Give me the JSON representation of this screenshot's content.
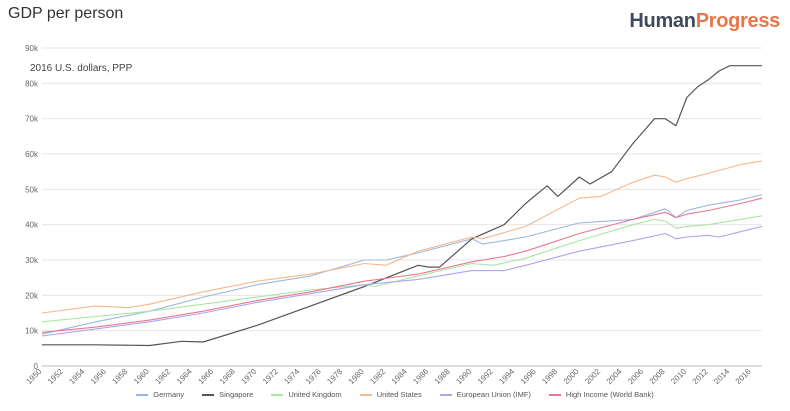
{
  "header": {
    "title": "GDP per person",
    "logo_part1": "Human",
    "logo_part2": "Progress"
  },
  "chart_data": {
    "type": "line",
    "title": "GDP per person",
    "ylabel": "2016 U.S. dollars, PPP",
    "xlabel": "",
    "xlim": [
      1950,
      2017
    ],
    "ylim": [
      0,
      90000
    ],
    "yticks": [
      0,
      10000,
      20000,
      30000,
      40000,
      50000,
      60000,
      70000,
      80000,
      90000
    ],
    "ytick_labels": [
      "0",
      "10k",
      "20k",
      "30k",
      "40k",
      "50k",
      "60k",
      "70k",
      "80k",
      "90k"
    ],
    "xticks": [
      1950,
      1952,
      1954,
      1956,
      1958,
      1960,
      1962,
      1964,
      1966,
      1968,
      1970,
      1972,
      1974,
      1976,
      1978,
      1980,
      1982,
      1984,
      1986,
      1988,
      1990,
      1992,
      1994,
      1996,
      1998,
      2000,
      2002,
      2004,
      2006,
      2008,
      2010,
      2012,
      2014,
      2016
    ],
    "grid": true,
    "legend_position": "bottom",
    "series": [
      {
        "name": "Germany",
        "color": "#9db8e0",
        "x": [
          1950,
          1955,
          1960,
          1965,
          1970,
          1975,
          1980,
          1982,
          1985,
          1990,
          1991,
          1993,
          1995,
          2000,
          2005,
          2008,
          2009,
          2010,
          2012,
          2015,
          2017
        ],
        "y": [
          9000,
          12500,
          15500,
          19500,
          23000,
          25500,
          30000,
          30000,
          32000,
          36000,
          34500,
          35500,
          36500,
          40500,
          41500,
          44500,
          42000,
          44000,
          45500,
          47000,
          48500
        ]
      },
      {
        "name": "Singapore",
        "color": "#555555",
        "x": [
          1950,
          1955,
          1960,
          1963,
          1965,
          1970,
          1975,
          1980,
          1985,
          1986,
          1987,
          1990,
          1993,
          1995,
          1997,
          1998,
          2000,
          2001,
          2003,
          2005,
          2007,
          2008,
          2009,
          2010,
          2011,
          2012,
          2013,
          2014,
          2015,
          2016,
          2017
        ],
        "y": [
          6000,
          6000,
          5800,
          7000,
          6800,
          11500,
          17000,
          22500,
          28500,
          28000,
          28000,
          36000,
          40000,
          46000,
          51000,
          48000,
          53500,
          51500,
          55000,
          63000,
          70000,
          70000,
          68000,
          76000,
          79000,
          81000,
          83500,
          85000,
          85000,
          85000,
          85000
        ]
      },
      {
        "name": "United Kingdom",
        "color": "#a9e6a0",
        "x": [
          1950,
          1955,
          1960,
          1965,
          1970,
          1975,
          1980,
          1981,
          1985,
          1990,
          1992,
          1995,
          2000,
          2005,
          2007,
          2008,
          2009,
          2010,
          2012,
          2015,
          2017
        ],
        "y": [
          12500,
          14000,
          15500,
          17500,
          19500,
          21500,
          23000,
          22500,
          25500,
          29000,
          28500,
          30500,
          35500,
          40000,
          41500,
          41000,
          39000,
          39500,
          40000,
          41500,
          42500
        ]
      },
      {
        "name": "United States",
        "color": "#f5b88c",
        "x": [
          1950,
          1955,
          1958,
          1960,
          1965,
          1970,
          1975,
          1980,
          1982,
          1985,
          1990,
          1991,
          1995,
          2000,
          2002,
          2005,
          2007,
          2008,
          2009,
          2010,
          2012,
          2015,
          2017
        ],
        "y": [
          15000,
          17000,
          16500,
          17500,
          21000,
          24000,
          26000,
          29000,
          28500,
          32500,
          36500,
          36000,
          39500,
          47500,
          48000,
          52000,
          54000,
          53500,
          52000,
          53000,
          54500,
          57000,
          58000
        ]
      },
      {
        "name": "European Union (IMF)",
        "color": "#a9a7ec",
        "x": [
          1950,
          1955,
          1960,
          1965,
          1970,
          1975,
          1980,
          1985,
          1990,
          1993,
          1995,
          2000,
          2005,
          2008,
          2009,
          2010,
          2012,
          2013,
          2015,
          2017
        ],
        "y": [
          8500,
          10500,
          12500,
          15000,
          18000,
          20500,
          23000,
          24500,
          27000,
          27000,
          28500,
          32500,
          35500,
          37500,
          36000,
          36500,
          37000,
          36500,
          38000,
          39500
        ]
      },
      {
        "name": "High Income (World Bank)",
        "color": "#e8788f",
        "x": [
          1950,
          1955,
          1960,
          1965,
          1970,
          1975,
          1980,
          1985,
          1990,
          1993,
          1995,
          2000,
          2005,
          2008,
          2009,
          2010,
          2012,
          2015,
          2017
        ],
        "y": [
          9500,
          11000,
          13000,
          15500,
          18500,
          21000,
          24000,
          26000,
          29500,
          31000,
          32500,
          37500,
          41500,
          43500,
          42000,
          43000,
          44000,
          46000,
          47500
        ]
      }
    ]
  }
}
